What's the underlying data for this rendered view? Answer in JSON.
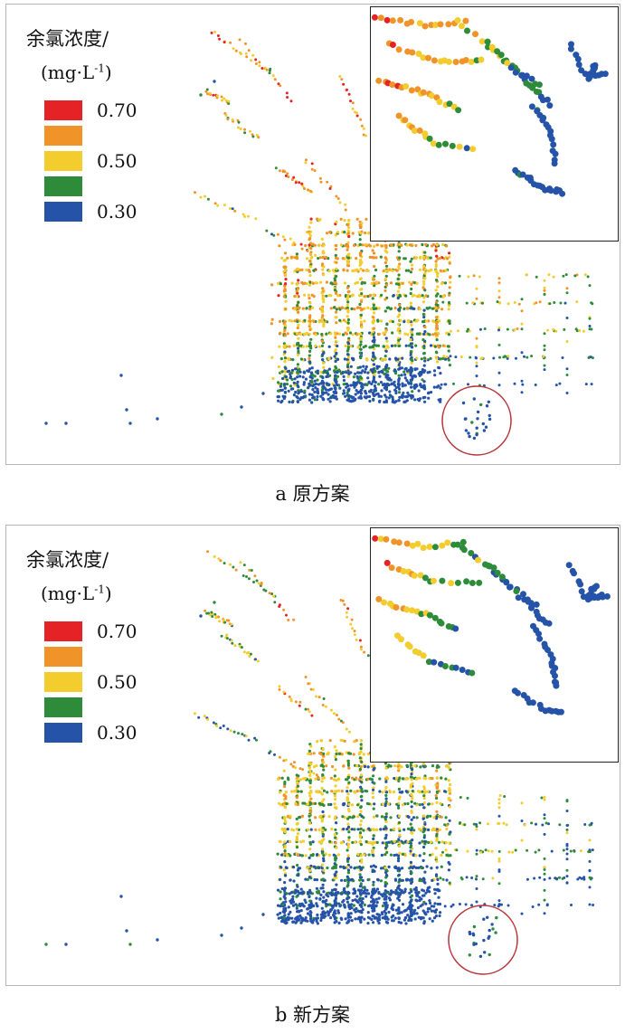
{
  "legend": {
    "title": "余氯浓度/",
    "unit_base": "(mg·L",
    "unit_sup": "-1",
    "unit_close": ")",
    "items": [
      {
        "color": "#e52326",
        "label": "0.70"
      },
      {
        "color": "#f0942a",
        "label": ""
      },
      {
        "color": "#f3cc2e",
        "label": "0.50"
      },
      {
        "color": "#2e8b3a",
        "label": ""
      },
      {
        "color": "#2553a8",
        "label": "0.30"
      }
    ]
  },
  "panels": [
    {
      "id": "a",
      "caption": "a 原方案"
    },
    {
      "id": "b",
      "caption": "b 新方案"
    }
  ],
  "colors": {
    "c70": "#e52326",
    "c60": "#f0942a",
    "c50": "#f3cc2e",
    "c40": "#2e8b3a",
    "c30": "#2553a8",
    "highlight_circle": "#b8353a"
  }
}
